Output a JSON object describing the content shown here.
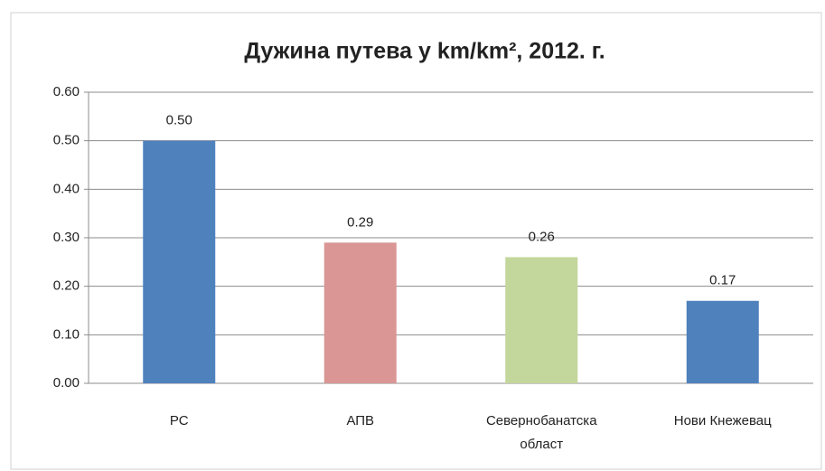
{
  "chart_data": {
    "type": "bar",
    "title": "Дужина путева у km/km², 2012. г.",
    "categories": [
      "РС",
      "АПВ",
      "Севернобанатска област",
      "Нови Кнежевац"
    ],
    "values": [
      0.5,
      0.29,
      0.26,
      0.17
    ],
    "value_labels": [
      "0.50",
      "0.29",
      "0.26",
      "0.17"
    ],
    "colors": [
      "#4f81bd",
      "#d99694",
      "#c3d69b",
      "#4f81bd"
    ],
    "ylim": [
      0,
      0.6
    ],
    "yticks": [
      {
        "value": 0,
        "label": "0.00"
      },
      {
        "value": 0.1,
        "label": "0.10"
      },
      {
        "value": 0.2,
        "label": "0.20"
      },
      {
        "value": 0.3,
        "label": "0.30"
      },
      {
        "value": 0.4,
        "label": "0.40"
      },
      {
        "value": 0.5,
        "label": "0.50"
      },
      {
        "value": 0.6,
        "label": "0.60"
      }
    ],
    "grid": true
  }
}
